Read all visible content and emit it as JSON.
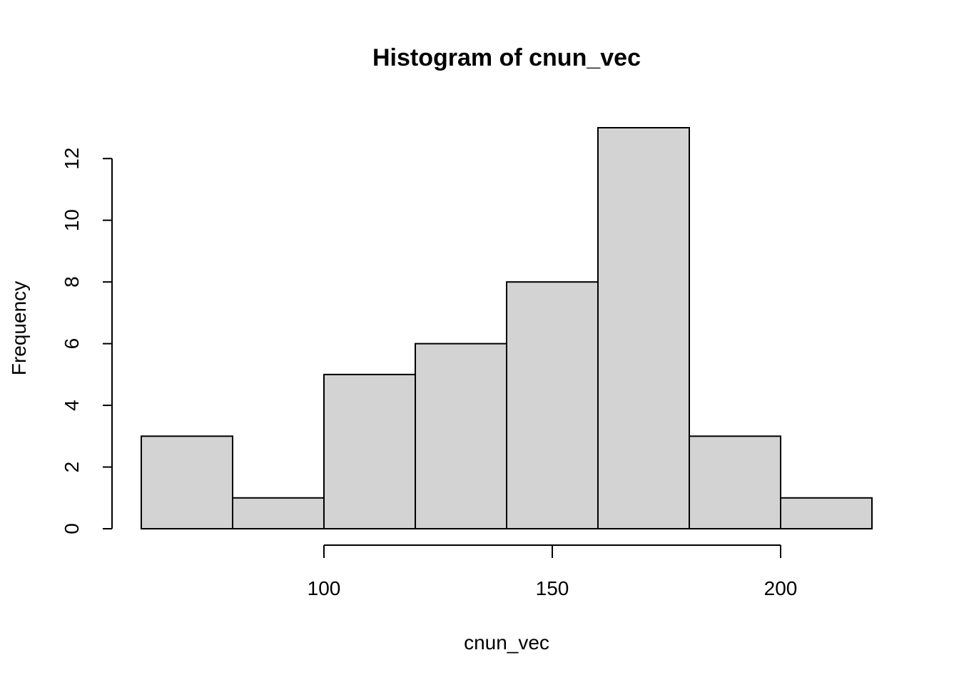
{
  "chart_data": {
    "type": "bar",
    "title": "Histogram of cnun_vec",
    "xlabel": "cnun_vec",
    "ylabel": "Frequency",
    "bins": [
      {
        "from": 60,
        "to": 80,
        "value": 3
      },
      {
        "from": 80,
        "to": 100,
        "value": 1
      },
      {
        "from": 100,
        "to": 120,
        "value": 5
      },
      {
        "from": 120,
        "to": 140,
        "value": 6
      },
      {
        "from": 140,
        "to": 160,
        "value": 8
      },
      {
        "from": 160,
        "to": 180,
        "value": 13
      },
      {
        "from": 180,
        "to": 200,
        "value": 3
      },
      {
        "from": 200,
        "to": 220,
        "value": 1
      }
    ],
    "xlim": [
      60,
      220
    ],
    "ylim": [
      0,
      13
    ],
    "x_ticks": [
      100,
      150,
      200
    ],
    "y_ticks": [
      0,
      2,
      4,
      6,
      8,
      10,
      12
    ],
    "grid": false,
    "colors": {
      "bar_fill": "#d3d3d3",
      "bar_stroke": "#000000"
    }
  }
}
